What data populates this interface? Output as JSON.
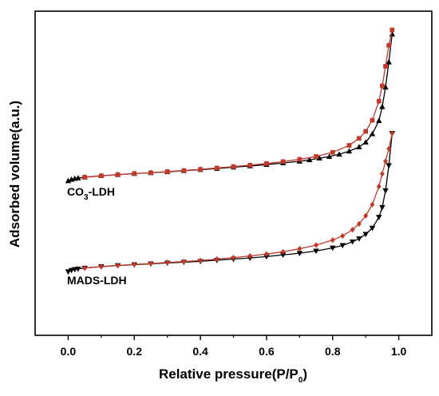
{
  "chart_data": {
    "type": "line",
    "title": "",
    "xlabel": "Relative pressure(P/P",
    "xlabel_subscript": "0",
    "xlabel_suffix": ")",
    "ylabel": "Adsorbed volume(a.u.)",
    "xlim": [
      -0.1,
      1.1
    ],
    "ylim": [
      0,
      1
    ],
    "x_ticks": [
      "0.0",
      "0.2",
      "0.4",
      "0.6",
      "0.8",
      "1.0"
    ],
    "y_ticks_shown": false,
    "grid": false,
    "legend": "none",
    "series_labels": [
      {
        "text": "CO",
        "subscript": "3",
        "suffix": "-LDH"
      },
      {
        "text": "MADS-LDH",
        "subscript": "",
        "suffix": ""
      }
    ],
    "series": [
      {
        "group": "CO3-LDH",
        "branch": "adsorption",
        "color": "#000000",
        "marker": "triangle-up",
        "x": [
          0.0,
          0.01,
          0.02,
          0.03,
          0.05,
          0.1,
          0.15,
          0.2,
          0.25,
          0.3,
          0.35,
          0.4,
          0.45,
          0.5,
          0.55,
          0.6,
          0.65,
          0.7,
          0.73,
          0.76,
          0.79,
          0.82,
          0.85,
          0.88,
          0.9,
          0.92,
          0.94,
          0.95,
          0.96,
          0.97,
          0.98
        ],
        "y": [
          0.45,
          0.455,
          0.458,
          0.46,
          0.463,
          0.468,
          0.472,
          0.476,
          0.479,
          0.482,
          0.486,
          0.49,
          0.494,
          0.499,
          0.503,
          0.508,
          0.514,
          0.52,
          0.525,
          0.531,
          0.537,
          0.545,
          0.556,
          0.571,
          0.588,
          0.618,
          0.665,
          0.715,
          0.785,
          0.875,
          0.975
        ]
      },
      {
        "group": "CO3-LDH",
        "branch": "desorption",
        "color": "#c0392b",
        "marker": "square",
        "x": [
          0.05,
          0.1,
          0.15,
          0.2,
          0.25,
          0.3,
          0.35,
          0.4,
          0.45,
          0.5,
          0.55,
          0.6,
          0.65,
          0.7,
          0.75,
          0.8,
          0.85,
          0.88,
          0.9,
          0.92,
          0.94,
          0.95,
          0.96,
          0.97,
          0.98
        ],
        "y": [
          0.463,
          0.468,
          0.472,
          0.476,
          0.479,
          0.483,
          0.487,
          0.491,
          0.496,
          0.501,
          0.506,
          0.512,
          0.519,
          0.527,
          0.537,
          0.552,
          0.577,
          0.602,
          0.627,
          0.667,
          0.735,
          0.79,
          0.86,
          0.935,
          0.99
        ]
      },
      {
        "group": "MADS-LDH",
        "branch": "adsorption",
        "color": "#000000",
        "marker": "triangle-down",
        "x": [
          0.0,
          0.01,
          0.02,
          0.03,
          0.05,
          0.1,
          0.15,
          0.2,
          0.25,
          0.3,
          0.35,
          0.4,
          0.45,
          0.5,
          0.55,
          0.6,
          0.65,
          0.7,
          0.75,
          0.8,
          0.83,
          0.86,
          0.88,
          0.9,
          0.92,
          0.94,
          0.95,
          0.96,
          0.97,
          0.98
        ],
        "y": [
          0.125,
          0.13,
          0.133,
          0.135,
          0.138,
          0.143,
          0.147,
          0.15,
          0.153,
          0.156,
          0.159,
          0.162,
          0.166,
          0.17,
          0.174,
          0.179,
          0.185,
          0.191,
          0.199,
          0.21,
          0.219,
          0.232,
          0.243,
          0.259,
          0.281,
          0.32,
          0.355,
          0.415,
          0.505,
          0.62
        ]
      },
      {
        "group": "MADS-LDH",
        "branch": "desorption",
        "color": "#c0392b",
        "marker": "diamond",
        "x": [
          0.05,
          0.1,
          0.15,
          0.2,
          0.25,
          0.3,
          0.35,
          0.4,
          0.45,
          0.5,
          0.55,
          0.6,
          0.65,
          0.7,
          0.75,
          0.8,
          0.83,
          0.86,
          0.88,
          0.9,
          0.92,
          0.94,
          0.95,
          0.96,
          0.97,
          0.98
        ],
        "y": [
          0.138,
          0.143,
          0.147,
          0.151,
          0.154,
          0.158,
          0.161,
          0.165,
          0.17,
          0.175,
          0.181,
          0.188,
          0.196,
          0.207,
          0.22,
          0.238,
          0.253,
          0.275,
          0.296,
          0.325,
          0.365,
          0.43,
          0.475,
          0.52,
          0.565,
          0.62
        ]
      }
    ]
  }
}
